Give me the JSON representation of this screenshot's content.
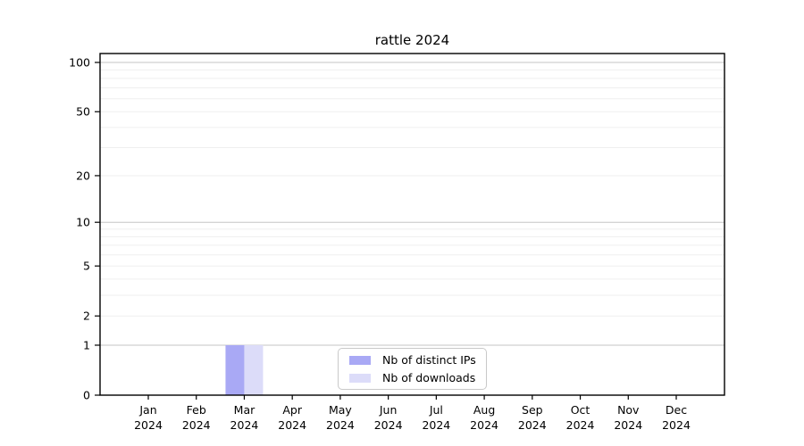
{
  "chart_data": {
    "type": "bar",
    "title": "rattle 2024",
    "categories": [
      "Jan",
      "Feb",
      "Mar",
      "Apr",
      "May",
      "Jun",
      "Jul",
      "Aug",
      "Sep",
      "Oct",
      "Nov",
      "Dec"
    ],
    "year": "2024",
    "series": [
      {
        "name": "Nb of distinct IPs",
        "color": "#a9a9f5",
        "values": [
          0,
          0,
          1,
          0,
          0,
          0,
          0,
          0,
          0,
          0,
          0,
          0
        ]
      },
      {
        "name": "Nb of downloads",
        "color": "#dcdcf9",
        "values": [
          0,
          0,
          1,
          0,
          0,
          0,
          0,
          0,
          0,
          0,
          0,
          0
        ]
      }
    ],
    "y_axis": {
      "scale": "log1p",
      "tick_values": [
        0,
        1,
        2,
        5,
        10,
        20,
        50,
        100
      ],
      "emphasized_gridlines": [
        1,
        10,
        100
      ],
      "minor_gridlines": [
        2,
        3,
        4,
        5,
        6,
        7,
        8,
        9,
        20,
        30,
        40,
        50,
        60,
        70,
        80,
        90
      ],
      "max_value": 100
    },
    "legend": {
      "position": "bottom-center"
    },
    "colors": {
      "axis": "#000000",
      "grid_emphasized": "#c6c6c6",
      "grid_minor": "#efefef",
      "legend_border": "#c9c9c9",
      "background": "#ffffff",
      "text": "#000000"
    }
  }
}
